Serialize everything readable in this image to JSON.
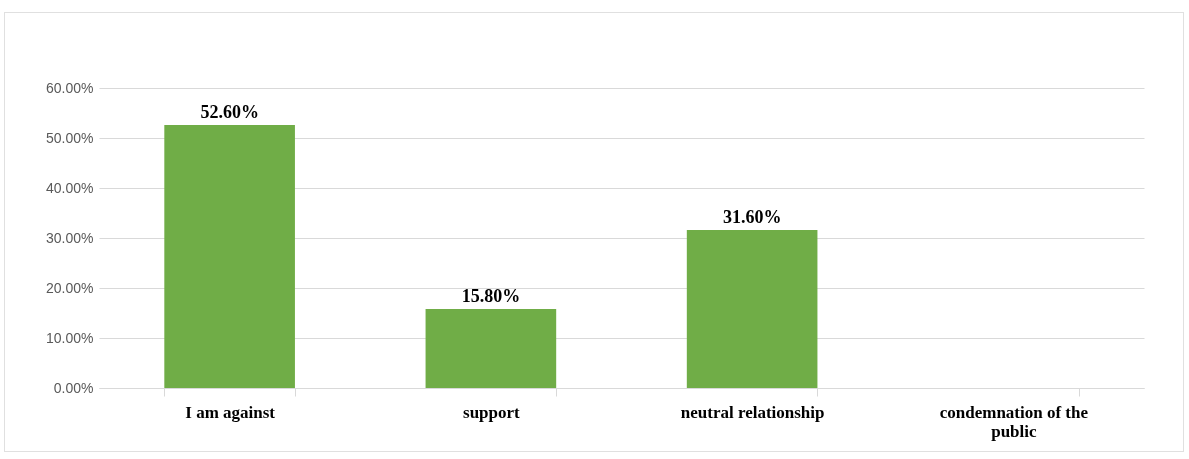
{
  "chart_data": {
    "type": "bar",
    "categories": [
      "I am against",
      "support",
      "neutral relationship",
      "condemnation of the public"
    ],
    "values": [
      52.6,
      15.8,
      31.6,
      0
    ],
    "color": "#70ad47",
    "value_labels": [
      "52.60%",
      "15.80%",
      "31.60%",
      null
    ],
    "ylim": [
      0,
      60
    ],
    "yticks": [
      {
        "value": 0,
        "label": "0.00%"
      },
      {
        "value": 10,
        "label": "10.00%"
      },
      {
        "value": 20,
        "label": "20.00%"
      },
      {
        "value": 30,
        "label": "30.00%"
      },
      {
        "value": 40,
        "label": "40.00%"
      },
      {
        "value": 50,
        "label": "50.00%"
      },
      {
        "value": 60,
        "label": "60.00%"
      }
    ],
    "grid": "y"
  }
}
